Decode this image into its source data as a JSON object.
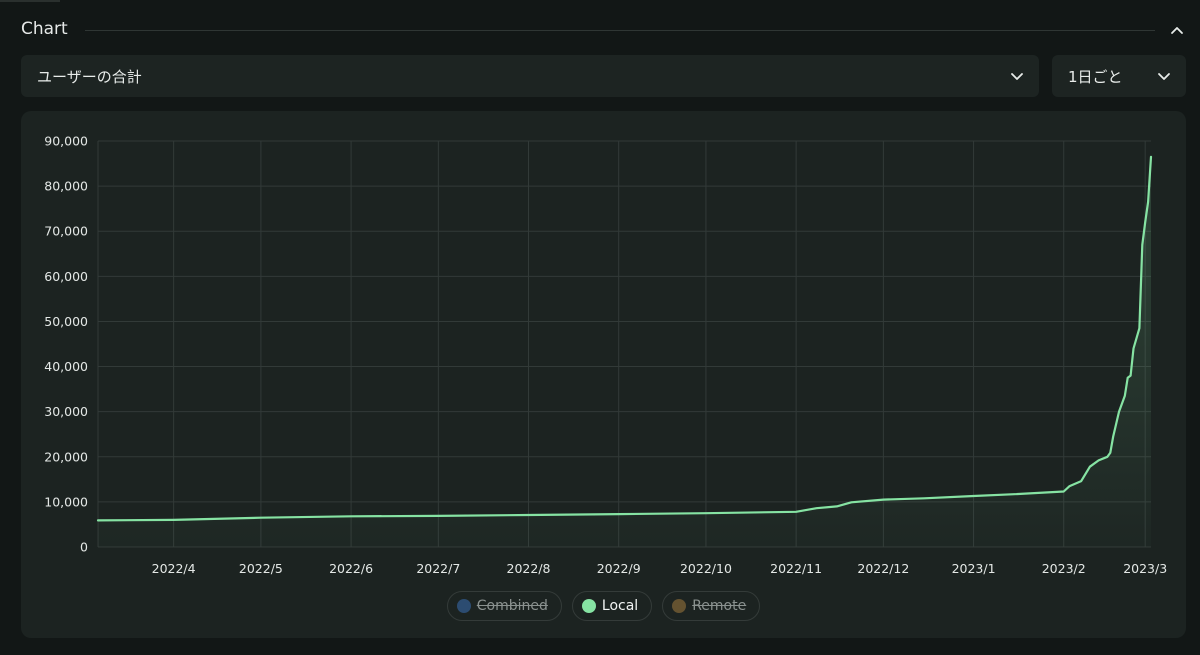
{
  "section": {
    "title": "Chart"
  },
  "controls": {
    "metric_select": "ユーザーの合計",
    "span_select": "1日ごと"
  },
  "colors": {
    "accent": "#86e3a3",
    "combined": "#3b6fb5",
    "local": "#86e3a3",
    "remote": "#a07a3e"
  },
  "chart_data": {
    "type": "line",
    "x_tick_labels": [
      "2022/4",
      "2022/5",
      "2022/6",
      "2022/7",
      "2022/8",
      "2022/9",
      "2022/10",
      "2022/11",
      "2022/12",
      "2023/1",
      "2023/2",
      "2023/3"
    ],
    "xlim": [
      "2022-03-06",
      "2023-03-03"
    ],
    "ylim": [
      0,
      90000
    ],
    "y_ticks": [
      0,
      10000,
      20000,
      30000,
      40000,
      50000,
      60000,
      70000,
      80000,
      90000
    ],
    "y_tick_labels": [
      "0",
      "10,000",
      "20,000",
      "30,000",
      "40,000",
      "50,000",
      "60,000",
      "70,000",
      "80,000",
      "90,000"
    ],
    "grid": true,
    "legend_position": "bottom-center",
    "series": [
      {
        "name": "Combined",
        "visible": false,
        "points": []
      },
      {
        "name": "Remote",
        "visible": false,
        "points": []
      },
      {
        "name": "Local",
        "visible": true,
        "points": [
          [
            "2022-03-06",
            5900
          ],
          [
            "2022-04-01",
            6000
          ],
          [
            "2022-05-01",
            6500
          ],
          [
            "2022-06-01",
            6800
          ],
          [
            "2022-07-01",
            6900
          ],
          [
            "2022-08-01",
            7100
          ],
          [
            "2022-09-01",
            7300
          ],
          [
            "2022-10-01",
            7500
          ],
          [
            "2022-11-01",
            7800
          ],
          [
            "2022-11-08",
            8600
          ],
          [
            "2022-11-15",
            9000
          ],
          [
            "2022-11-20",
            9900
          ],
          [
            "2022-12-01",
            10500
          ],
          [
            "2022-12-15",
            10800
          ],
          [
            "2023-01-01",
            11300
          ],
          [
            "2023-01-15",
            11700
          ],
          [
            "2023-02-01",
            12300
          ],
          [
            "2023-02-03",
            13500
          ],
          [
            "2023-02-07",
            14600
          ],
          [
            "2023-02-10",
            17800
          ],
          [
            "2023-02-13",
            19200
          ],
          [
            "2023-02-16",
            20000
          ],
          [
            "2023-02-17",
            20900
          ],
          [
            "2023-02-18",
            24500
          ],
          [
            "2023-02-20",
            30000
          ],
          [
            "2023-02-22",
            33500
          ],
          [
            "2023-02-23",
            37500
          ],
          [
            "2023-02-24",
            38000
          ],
          [
            "2023-02-25",
            44000
          ],
          [
            "2023-02-27",
            48500
          ],
          [
            "2023-02-28",
            67000
          ],
          [
            "2023-03-01",
            72000
          ],
          [
            "2023-03-02",
            76500
          ],
          [
            "2023-03-03",
            86500
          ]
        ]
      }
    ]
  },
  "legend": {
    "combined": "Combined",
    "local": "Local",
    "remote": "Remote"
  }
}
